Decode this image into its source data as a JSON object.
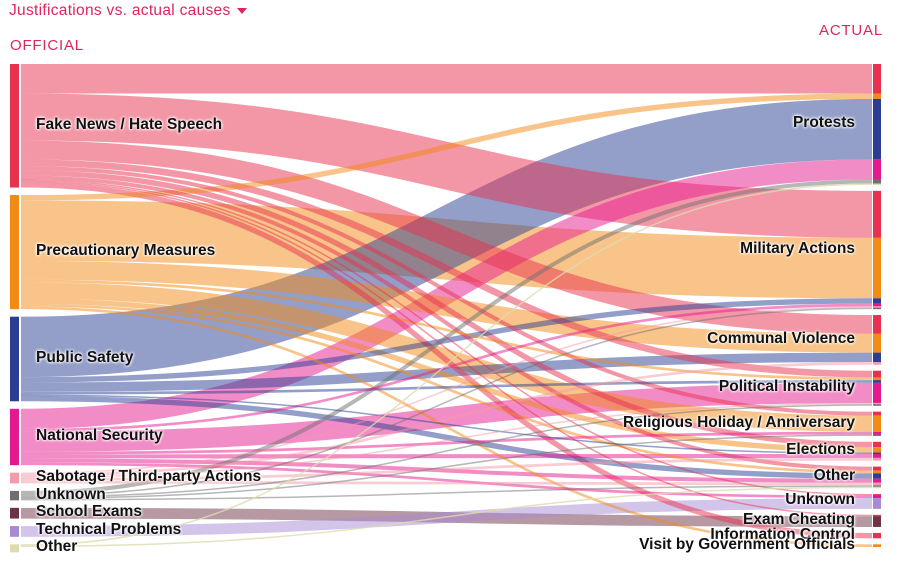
{
  "header": {
    "dropdown_label": "Justifications vs. actual causes"
  },
  "columns": {
    "left_title": "OFFICIAL",
    "right_title": "ACTUAL"
  },
  "colors": {
    "fake_news": "#e8304f",
    "precautionary": "#f28a14",
    "public_safety": "#2a3f94",
    "national_security": "#e5198f",
    "sabotage": "#f49aa8",
    "unknown": "#6f6f6f",
    "school_exams": "#6d3345",
    "technical": "#a889d6",
    "other": "#dcdcb0",
    "accent": "#e0245e"
  },
  "official": [
    {
      "id": "fake_news",
      "label": "Fake News / Hate Speech"
    },
    {
      "id": "precautionary",
      "label": "Precautionary Measures"
    },
    {
      "id": "public_safety",
      "label": "Public Safety"
    },
    {
      "id": "national_security",
      "label": "National Security"
    },
    {
      "id": "sabotage",
      "label": "Sabotage / Third-party Actions"
    },
    {
      "id": "unknown",
      "label": "Unknown"
    },
    {
      "id": "school_exams",
      "label": "School Exams"
    },
    {
      "id": "technical",
      "label": "Technical Problems"
    },
    {
      "id": "other",
      "label": "Other"
    }
  ],
  "actual": [
    {
      "id": "protests",
      "label": "Protests"
    },
    {
      "id": "military",
      "label": "Military Actions"
    },
    {
      "id": "communal",
      "label": "Communal Violence"
    },
    {
      "id": "political",
      "label": "Political Instability"
    },
    {
      "id": "religious",
      "label": "Religious Holiday / Anniversary"
    },
    {
      "id": "elections",
      "label": "Elections"
    },
    {
      "id": "other",
      "label": "Other"
    },
    {
      "id": "unknown",
      "label": "Unknown"
    },
    {
      "id": "exam",
      "label": "Exam Cheating"
    },
    {
      "id": "info",
      "label": "Information Control"
    },
    {
      "id": "visit",
      "label": "Visit by Government Officials"
    }
  ],
  "flows": [
    {
      "source": "fake_news",
      "target": "protests",
      "value": 22
    },
    {
      "source": "fake_news",
      "target": "military",
      "value": 35
    },
    {
      "source": "fake_news",
      "target": "communal",
      "value": 14
    },
    {
      "source": "fake_news",
      "target": "political",
      "value": 5
    },
    {
      "source": "fake_news",
      "target": "religious",
      "value": 3
    },
    {
      "source": "fake_news",
      "target": "elections",
      "value": 4
    },
    {
      "source": "fake_news",
      "target": "other",
      "value": 3
    },
    {
      "source": "fake_news",
      "target": "info",
      "value": 4
    },
    {
      "source": "fake_news",
      "target": "unknown",
      "value": 1
    },
    {
      "source": "fake_news",
      "target": "exam",
      "value": 1
    },
    {
      "source": "precautionary",
      "target": "protests",
      "value": 4
    },
    {
      "source": "precautionary",
      "target": "military",
      "value": 45
    },
    {
      "source": "precautionary",
      "target": "communal",
      "value": 14
    },
    {
      "source": "precautionary",
      "target": "political",
      "value": 2
    },
    {
      "source": "precautionary",
      "target": "religious",
      "value": 12
    },
    {
      "source": "precautionary",
      "target": "elections",
      "value": 4
    },
    {
      "source": "precautionary",
      "target": "other",
      "value": 2
    },
    {
      "source": "precautionary",
      "target": "visit",
      "value": 2
    },
    {
      "source": "public_safety",
      "target": "protests",
      "value": 45
    },
    {
      "source": "public_safety",
      "target": "military",
      "value": 4
    },
    {
      "source": "public_safety",
      "target": "communal",
      "value": 7
    },
    {
      "source": "public_safety",
      "target": "political",
      "value": 2
    },
    {
      "source": "public_safety",
      "target": "elections",
      "value": 1
    },
    {
      "source": "public_safety",
      "target": "other",
      "value": 4
    },
    {
      "source": "national_security",
      "target": "protests",
      "value": 15
    },
    {
      "source": "national_security",
      "target": "military",
      "value": 2
    },
    {
      "source": "national_security",
      "target": "political",
      "value": 15
    },
    {
      "source": "national_security",
      "target": "religious",
      "value": 2
    },
    {
      "source": "national_security",
      "target": "elections",
      "value": 3
    },
    {
      "source": "national_security",
      "target": "other",
      "value": 3
    },
    {
      "source": "national_security",
      "target": "unknown",
      "value": 2
    },
    {
      "source": "sabotage",
      "target": "military",
      "value": 1
    },
    {
      "source": "sabotage",
      "target": "communal",
      "value": 2
    },
    {
      "source": "sabotage",
      "target": "political",
      "value": 1
    },
    {
      "source": "sabotage",
      "target": "elections",
      "value": 2
    },
    {
      "source": "sabotage",
      "target": "other",
      "value": 2
    },
    {
      "source": "unknown",
      "target": "protests",
      "value": 3
    },
    {
      "source": "unknown",
      "target": "military",
      "value": 1
    },
    {
      "source": "unknown",
      "target": "political",
      "value": 1
    },
    {
      "source": "unknown",
      "target": "religious",
      "value": 1
    },
    {
      "source": "unknown",
      "target": "other",
      "value": 1
    },
    {
      "source": "school_exams",
      "target": "exam",
      "value": 8
    },
    {
      "source": "technical",
      "target": "unknown",
      "value": 8
    },
    {
      "source": "other",
      "target": "protests",
      "value": 1
    },
    {
      "source": "other",
      "target": "other",
      "value": 1
    }
  ]
}
